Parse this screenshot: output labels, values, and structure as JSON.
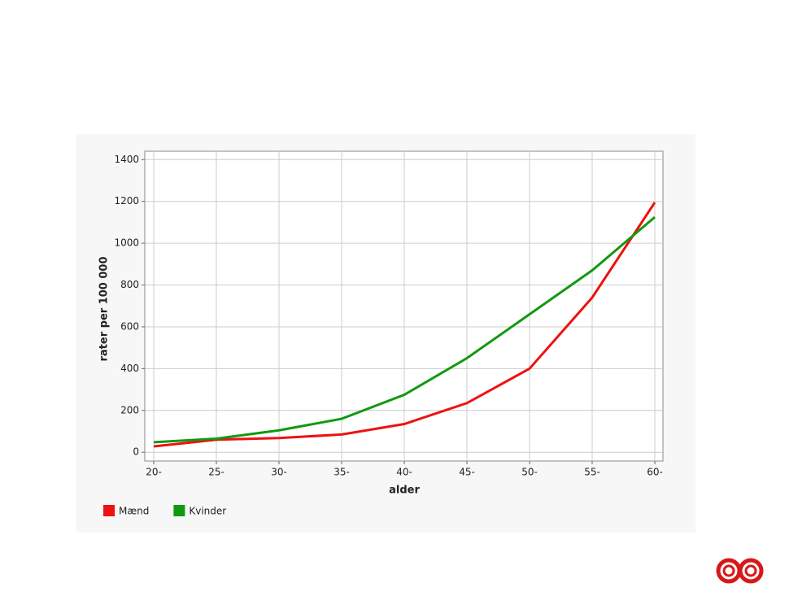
{
  "chart_data": {
    "type": "line",
    "x_label": "alder",
    "y_label": "rater per 100 000",
    "categories": [
      "20-",
      "25-",
      "30-",
      "35-",
      "40-",
      "45-",
      "50-",
      "55-",
      "60-"
    ],
    "series": [
      {
        "name": "Mænd",
        "color": "#ee1111",
        "values": [
          28,
          60,
          68,
          85,
          135,
          235,
          400,
          740,
          1195
        ]
      },
      {
        "name": "Kvinder",
        "color": "#119911",
        "values": [
          48,
          65,
          105,
          160,
          275,
          450,
          660,
          870,
          1125
        ]
      }
    ],
    "ylim": [
      -42,
      1440
    ],
    "yticks": [
      0,
      200,
      400,
      600,
      800,
      1000,
      1200,
      1400
    ],
    "grid": true
  }
}
